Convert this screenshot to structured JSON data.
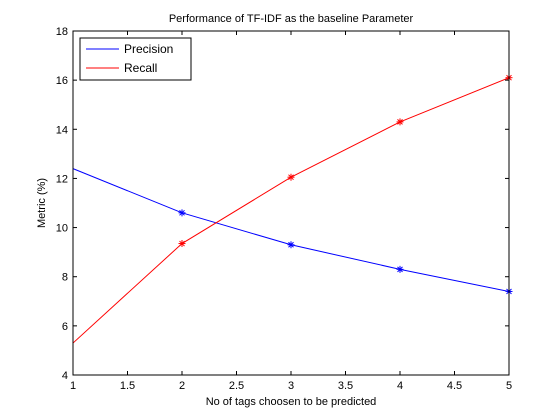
{
  "chart_data": {
    "type": "line",
    "title": "Performance of TF-IDF as the baseline Parameter",
    "xlabel": "No of tags choosen to be predicted",
    "ylabel": "Metric (%)",
    "xlim": [
      1,
      5
    ],
    "ylim": [
      4,
      18
    ],
    "x_ticks": [
      "1",
      "1.5",
      "2",
      "2.5",
      "3",
      "3.5",
      "4",
      "4.5",
      "5"
    ],
    "y_ticks": [
      "4",
      "6",
      "8",
      "10",
      "12",
      "14",
      "16",
      "18"
    ],
    "grid": false,
    "legend_position": "top-left",
    "x": [
      1,
      2,
      3,
      4,
      5
    ],
    "series": [
      {
        "name": "Precision",
        "color": "#0000ff",
        "values": [
          12.4,
          10.6,
          9.3,
          8.3,
          7.4
        ],
        "marker": "*",
        "marked_points": [
          2,
          3,
          4,
          5
        ]
      },
      {
        "name": "Recall",
        "color": "#ff0000",
        "values": [
          5.3,
          9.35,
          12.05,
          14.3,
          16.1
        ],
        "marker": "*",
        "marked_points": [
          2,
          3,
          4,
          5
        ]
      }
    ]
  }
}
